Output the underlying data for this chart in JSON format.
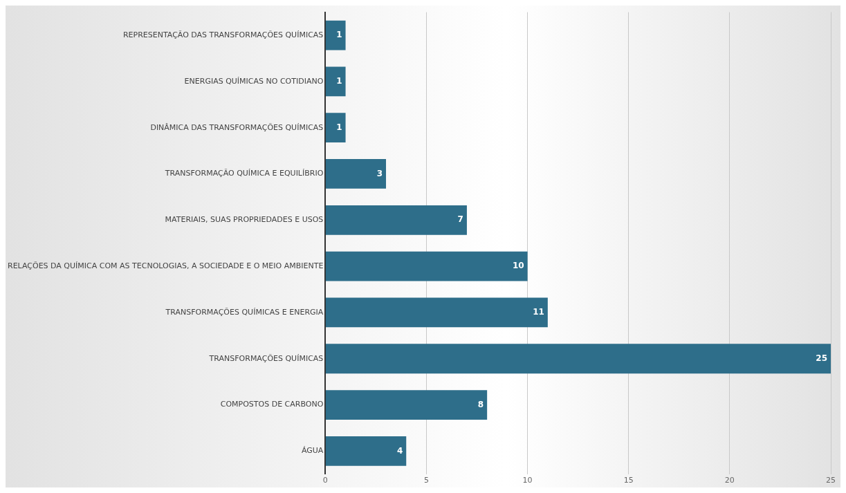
{
  "chart_data": {
    "type": "bar",
    "orientation": "horizontal",
    "categories": [
      "REPRESENTAÇÃO DAS TRANSFORMAÇÕES QUÍMICAS",
      "ENERGIAS QUÍMICAS NO COTIDIANO",
      "DINÂMICA DAS TRANSFORMAÇÕES QUÍMICAS",
      "TRANSFORMAÇÃO QUÍMICA E EQUILÍBRIO",
      "MATERIAIS, SUAS PROPRIEDADES E USOS",
      "RELAÇÕES DA QUÍMICA COM AS TECNOLOGIAS, A SOCIEDADE E O MEIO AMBIENTE",
      "TRANSFORMAÇÕES QUÍMICAS E ENERGIA",
      "TRANSFORMAÇÕES QUÍMICAS",
      "COMPOSTOS DE CARBONO",
      "ÁGUA"
    ],
    "values": [
      1,
      1,
      1,
      3,
      7,
      10,
      11,
      25,
      8,
      4
    ],
    "color": "#2e6e8a",
    "xlim": [
      0,
      25
    ],
    "xticks": [
      0,
      5,
      10,
      15,
      20,
      25
    ],
    "grid": "x",
    "legend": false,
    "data_labels": true
  }
}
